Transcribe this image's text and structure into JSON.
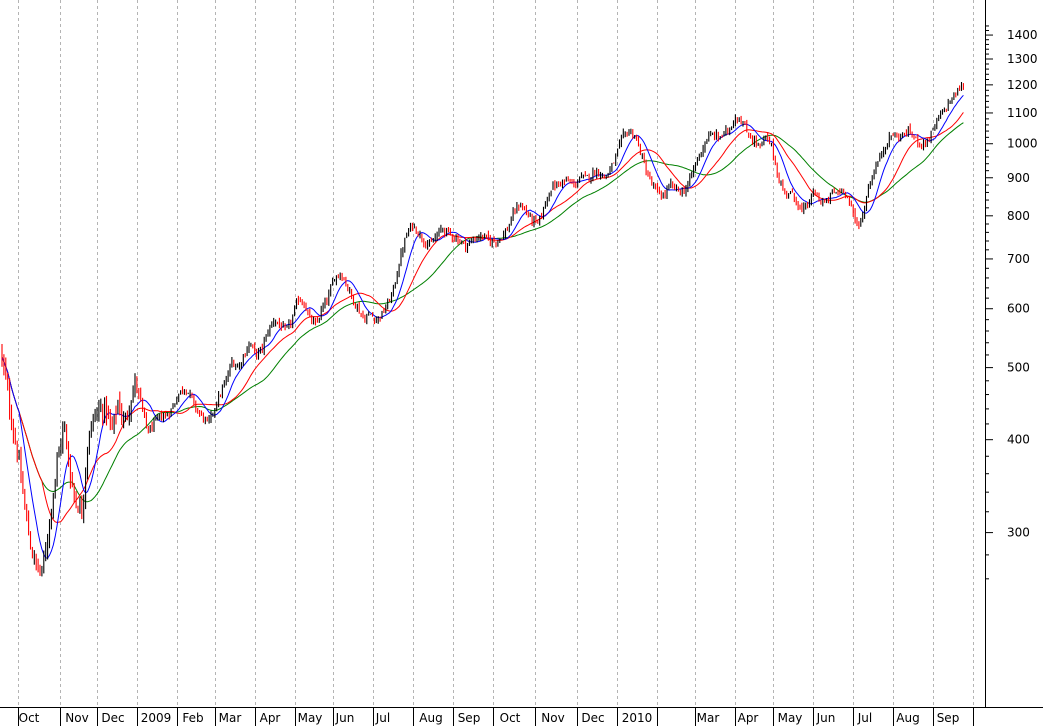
{
  "chart_data": {
    "type": "candlestick",
    "title": "",
    "xlabel": "",
    "ylabel": "",
    "y_scale": "log",
    "ylim": [
      245,
      1450
    ],
    "y_ticks": [
      300,
      400,
      500,
      600,
      700,
      800,
      900,
      1000,
      1100,
      1200,
      1300,
      1400
    ],
    "y_tick_labels": [
      "300",
      "400",
      "500",
      "600",
      "700",
      "800",
      "900",
      "1000",
      "1100",
      "1200",
      "1300",
      "1400"
    ],
    "x_labels": [
      "Oct",
      "Nov",
      "Dec",
      "2009",
      "Feb",
      "Mar",
      "Apr",
      "May",
      "Jun",
      "Jul",
      "Aug",
      "Sep",
      "Oct",
      "Nov",
      "Dec",
      "2010",
      "Mar",
      "Apr",
      "May",
      "Jun",
      "Jul",
      "Aug",
      "Sep"
    ],
    "grid": "vertical dashed at month boundaries",
    "colors": {
      "up": "#000000",
      "down": "#ff0000",
      "ma_short": "#0000ff",
      "ma_mid": "#ff0000",
      "ma_long": "#008000",
      "grid": "#b4b4b4",
      "axis": "#000000"
    },
    "price_path": [
      [
        0,
        530
      ],
      [
        6,
        480
      ],
      [
        12,
        420
      ],
      [
        18,
        380
      ],
      [
        24,
        330
      ],
      [
        30,
        290
      ],
      [
        36,
        270
      ],
      [
        42,
        265
      ],
      [
        48,
        300
      ],
      [
        52,
        330
      ],
      [
        58,
        380
      ],
      [
        64,
        420
      ],
      [
        70,
        360
      ],
      [
        76,
        330
      ],
      [
        82,
        320
      ],
      [
        88,
        400
      ],
      [
        94,
        430
      ],
      [
        100,
        440
      ],
      [
        106,
        440
      ],
      [
        112,
        410
      ],
      [
        118,
        450
      ],
      [
        124,
        420
      ],
      [
        130,
        450
      ],
      [
        136,
        480
      ],
      [
        142,
        440
      ],
      [
        148,
        410
      ],
      [
        154,
        420
      ],
      [
        160,
        430
      ],
      [
        166,
        430
      ],
      [
        172,
        440
      ],
      [
        178,
        460
      ],
      [
        184,
        470
      ],
      [
        190,
        460
      ],
      [
        196,
        440
      ],
      [
        202,
        430
      ],
      [
        208,
        420
      ],
      [
        214,
        440
      ],
      [
        220,
        460
      ],
      [
        226,
        480
      ],
      [
        232,
        510
      ],
      [
        238,
        500
      ],
      [
        244,
        520
      ],
      [
        250,
        540
      ],
      [
        256,
        520
      ],
      [
        262,
        530
      ],
      [
        268,
        560
      ],
      [
        274,
        580
      ],
      [
        280,
        570
      ],
      [
        286,
        560
      ],
      [
        292,
        580
      ],
      [
        298,
        620
      ],
      [
        304,
        610
      ],
      [
        310,
        580
      ],
      [
        316,
        570
      ],
      [
        322,
        600
      ],
      [
        328,
        620
      ],
      [
        334,
        660
      ],
      [
        340,
        670
      ],
      [
        346,
        650
      ],
      [
        352,
        620
      ],
      [
        358,
        600
      ],
      [
        364,
        580
      ],
      [
        370,
        590
      ],
      [
        376,
        580
      ],
      [
        382,
        590
      ],
      [
        388,
        610
      ],
      [
        394,
        640
      ],
      [
        400,
        700
      ],
      [
        406,
        750
      ],
      [
        412,
        780
      ],
      [
        418,
        760
      ],
      [
        424,
        740
      ],
      [
        430,
        730
      ],
      [
        436,
        750
      ],
      [
        442,
        770
      ],
      [
        448,
        760
      ],
      [
        454,
        750
      ],
      [
        460,
        740
      ],
      [
        466,
        730
      ],
      [
        472,
        740
      ],
      [
        478,
        750
      ],
      [
        484,
        750
      ],
      [
        490,
        740
      ],
      [
        496,
        740
      ],
      [
        502,
        750
      ],
      [
        508,
        770
      ],
      [
        514,
        810
      ],
      [
        520,
        830
      ],
      [
        526,
        810
      ],
      [
        532,
        790
      ],
      [
        538,
        780
      ],
      [
        544,
        820
      ],
      [
        550,
        870
      ],
      [
        556,
        880
      ],
      [
        562,
        890
      ],
      [
        568,
        890
      ],
      [
        574,
        880
      ],
      [
        580,
        900
      ],
      [
        586,
        900
      ],
      [
        592,
        910
      ],
      [
        598,
        920
      ],
      [
        604,
        900
      ],
      [
        610,
        920
      ],
      [
        616,
        960
      ],
      [
        622,
        1020
      ],
      [
        628,
        1040
      ],
      [
        634,
        1030
      ],
      [
        640,
        980
      ],
      [
        646,
        920
      ],
      [
        652,
        880
      ],
      [
        658,
        860
      ],
      [
        664,
        850
      ],
      [
        670,
        880
      ],
      [
        676,
        870
      ],
      [
        682,
        860
      ],
      [
        688,
        880
      ],
      [
        694,
        930
      ],
      [
        700,
        970
      ],
      [
        706,
        1010
      ],
      [
        712,
        1030
      ],
      [
        718,
        1020
      ],
      [
        724,
        1030
      ],
      [
        730,
        1050
      ],
      [
        736,
        1090
      ],
      [
        742,
        1070
      ],
      [
        748,
        1030
      ],
      [
        754,
        1010
      ],
      [
        760,
        990
      ],
      [
        766,
        1020
      ],
      [
        772,
        990
      ],
      [
        778,
        900
      ],
      [
        784,
        860
      ],
      [
        790,
        860
      ],
      [
        796,
        840
      ],
      [
        802,
        810
      ],
      [
        808,
        830
      ],
      [
        814,
        860
      ],
      [
        820,
        840
      ],
      [
        826,
        830
      ],
      [
        832,
        860
      ],
      [
        838,
        860
      ],
      [
        844,
        870
      ],
      [
        850,
        830
      ],
      [
        856,
        780
      ],
      [
        862,
        790
      ],
      [
        868,
        870
      ],
      [
        874,
        920
      ],
      [
        880,
        960
      ],
      [
        886,
        1000
      ],
      [
        892,
        1030
      ],
      [
        898,
        1020
      ],
      [
        904,
        1030
      ],
      [
        910,
        1040
      ],
      [
        916,
        1010
      ],
      [
        922,
        1000
      ],
      [
        928,
        1010
      ],
      [
        934,
        1050
      ],
      [
        940,
        1090
      ],
      [
        946,
        1120
      ],
      [
        952,
        1150
      ],
      [
        958,
        1180
      ],
      [
        964,
        1200
      ]
    ]
  }
}
